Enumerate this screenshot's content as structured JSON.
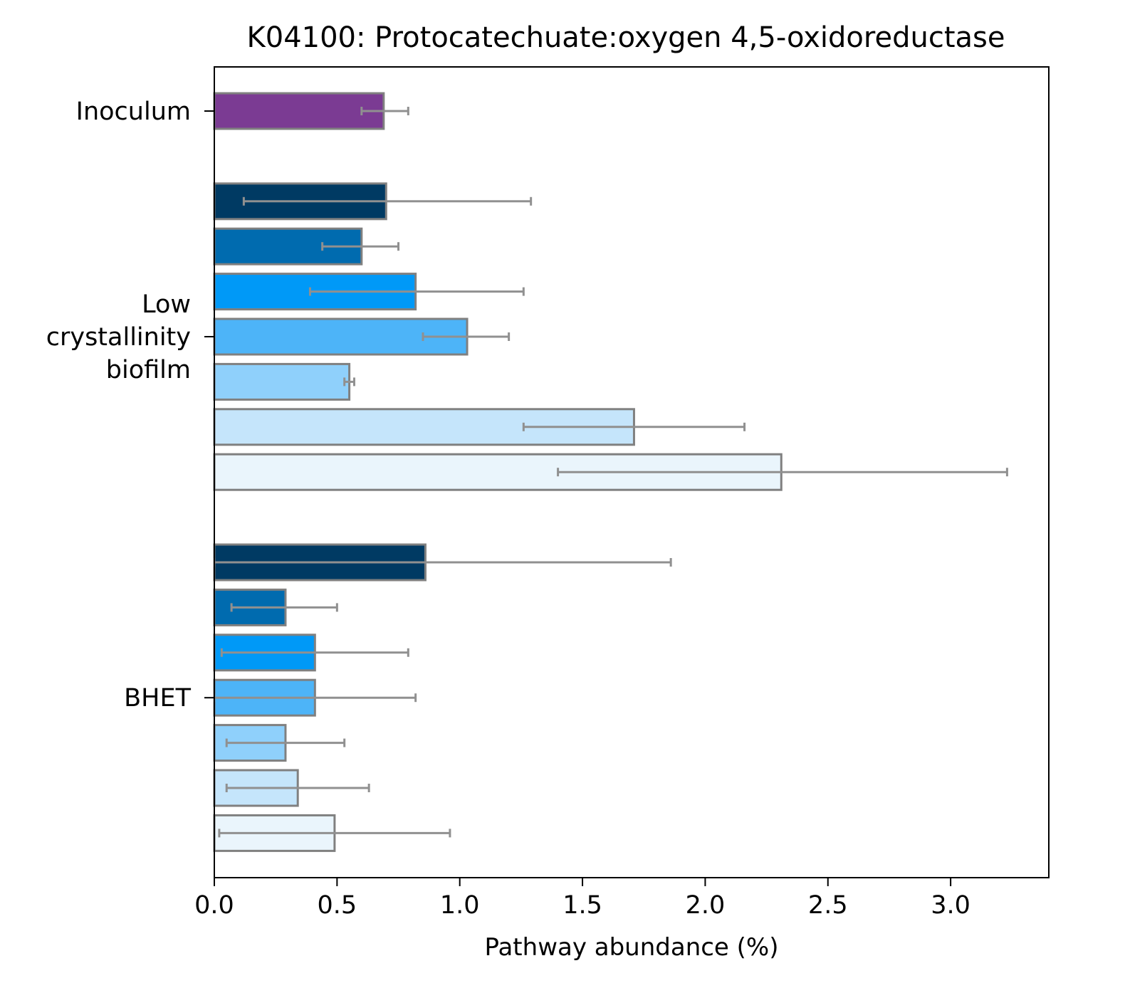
{
  "chart_data": {
    "type": "bar",
    "orientation": "horizontal",
    "title": "K04100: Protocatechuate:oxygen 4,5-oxidoreductase",
    "xlabel": "Pathway abundance (%)",
    "xlim": [
      0,
      3.4
    ],
    "xticks": [
      "0.0",
      "0.5",
      "1.0",
      "1.5",
      "2.0",
      "2.5",
      "3.0"
    ],
    "grid": false,
    "colors": {
      "edge": "#808080",
      "errorbar": "#909090",
      "axis": "#000000"
    },
    "groups": [
      {
        "label": [
          "Inoculum"
        ],
        "bars": [
          {
            "value": 0.69,
            "err_low": 0.6,
            "err_high": 0.79,
            "color": "#7b3b93"
          }
        ]
      },
      {
        "label": [
          "Low",
          "crystallinity",
          "biofilm"
        ],
        "bars": [
          {
            "value": 0.7,
            "err_low": 0.12,
            "err_high": 1.29,
            "color": "#003a63"
          },
          {
            "value": 0.6,
            "err_low": 0.44,
            "err_high": 0.75,
            "color": "#006baf"
          },
          {
            "value": 0.82,
            "err_low": 0.39,
            "err_high": 1.26,
            "color": "#0099f7"
          },
          {
            "value": 1.03,
            "err_low": 0.85,
            "err_high": 1.2,
            "color": "#4db4f8"
          },
          {
            "value": 0.55,
            "err_low": 0.53,
            "err_high": 0.57,
            "color": "#8fd0fb"
          },
          {
            "value": 1.71,
            "err_low": 1.26,
            "err_high": 2.16,
            "color": "#c5e5fb"
          },
          {
            "value": 2.31,
            "err_low": 1.4,
            "err_high": 3.23,
            "color": "#eaf5fc"
          }
        ]
      },
      {
        "label": [
          "BHET"
        ],
        "bars": [
          {
            "value": 0.86,
            "err_low": 0.0,
            "err_high": 1.86,
            "color": "#003a63"
          },
          {
            "value": 0.29,
            "err_low": 0.07,
            "err_high": 0.5,
            "color": "#006baf"
          },
          {
            "value": 0.41,
            "err_low": 0.03,
            "err_high": 0.79,
            "color": "#0099f7"
          },
          {
            "value": 0.41,
            "err_low": 0.0,
            "err_high": 0.82,
            "color": "#4db4f8"
          },
          {
            "value": 0.29,
            "err_low": 0.05,
            "err_high": 0.53,
            "color": "#8fd0fb"
          },
          {
            "value": 0.34,
            "err_low": 0.05,
            "err_high": 0.63,
            "color": "#c5e5fb"
          },
          {
            "value": 0.49,
            "err_low": 0.02,
            "err_high": 0.96,
            "color": "#eaf5fc"
          }
        ]
      }
    ]
  }
}
